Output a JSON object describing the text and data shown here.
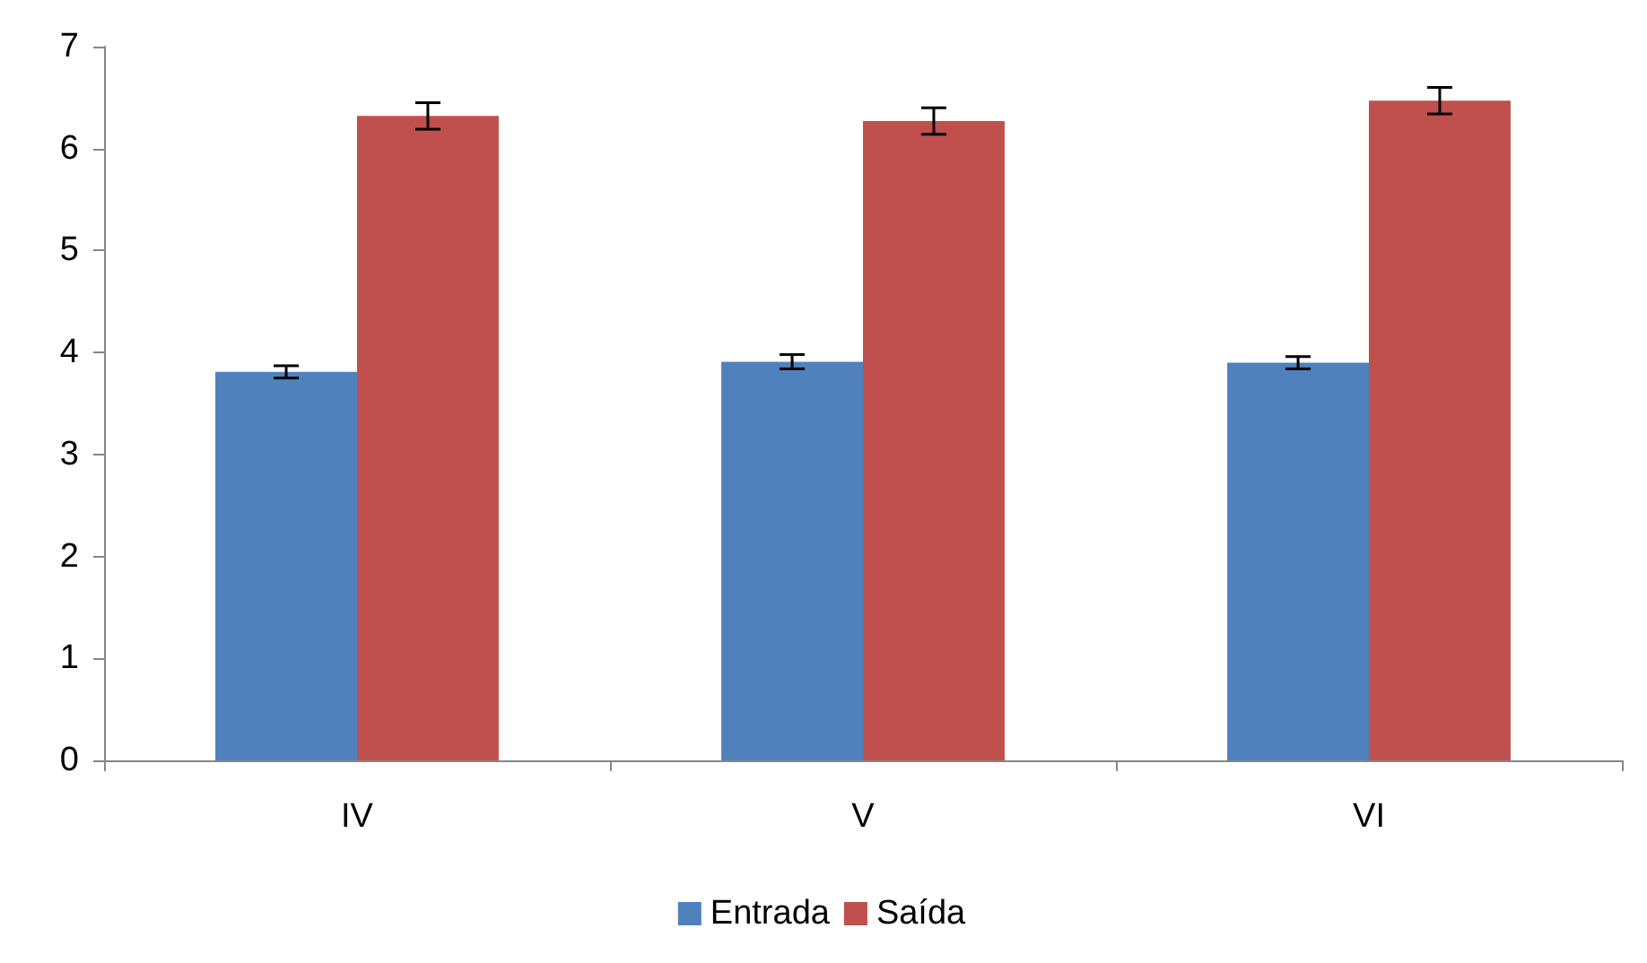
{
  "chart_data": {
    "type": "bar",
    "categories": [
      "IV",
      "V",
      "VI"
    ],
    "series": [
      {
        "name": "Entrada",
        "color": "#4f81bd",
        "values": [
          3.81,
          3.91,
          3.9
        ],
        "errors": [
          0.06,
          0.07,
          0.06
        ]
      },
      {
        "name": "Saída",
        "color": "#c0504d",
        "values": [
          6.32,
          6.27,
          6.47
        ],
        "errors": [
          0.13,
          0.13,
          0.13
        ]
      }
    ],
    "ylim": [
      0,
      7
    ],
    "yticks": [
      0,
      1,
      2,
      3,
      4,
      5,
      6,
      7
    ],
    "grid": false,
    "legend": "bottom"
  }
}
